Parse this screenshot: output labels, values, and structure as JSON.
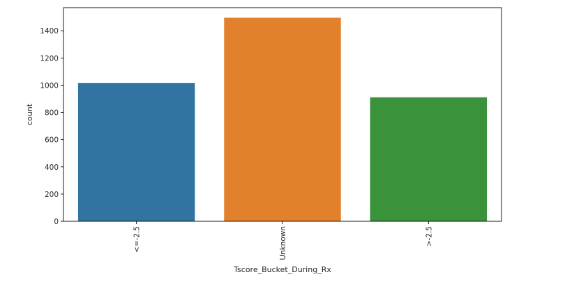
{
  "chart_data": {
    "type": "bar",
    "xlabel": "Tscore_Bucket_During_Rx",
    "ylabel": "count",
    "categories": [
      "<=-2.5",
      "Unknown",
      ">-2.5"
    ],
    "values": [
      1017,
      1496,
      911
    ],
    "colors": [
      "#3274a1",
      "#e1812c",
      "#3a923a"
    ],
    "ylim": [
      0,
      1570
    ],
    "yticks": [
      0,
      200,
      400,
      600,
      800,
      1000,
      1200,
      1400
    ],
    "xtick_rotation": "vertical",
    "grid": false,
    "legend": "none"
  }
}
